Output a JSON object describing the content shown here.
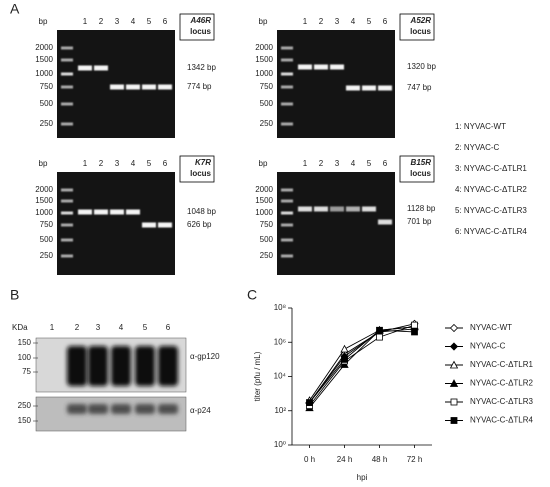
{
  "panel_a": {
    "label": "A",
    "gels": [
      {
        "locus": "A46R",
        "locus_suffix": "locus",
        "unit": "bp",
        "lanes": [
          "1",
          "2",
          "3",
          "4",
          "5",
          "6"
        ],
        "ladder": [
          "2000",
          "1500",
          "1000",
          "750",
          "500",
          "250"
        ],
        "bands": [
          "1342 bp",
          "774 bp"
        ]
      },
      {
        "locus": "A52R",
        "locus_suffix": "locus",
        "unit": "bp",
        "lanes": [
          "1",
          "2",
          "3",
          "4",
          "5",
          "6"
        ],
        "ladder": [
          "2000",
          "1500",
          "1000",
          "750",
          "500",
          "250"
        ],
        "bands": [
          "1320 bp",
          "747 bp"
        ]
      },
      {
        "locus": "K7R",
        "locus_suffix": "locus",
        "unit": "bp",
        "lanes": [
          "1",
          "2",
          "3",
          "4",
          "5",
          "6"
        ],
        "ladder": [
          "2000",
          "1500",
          "1000",
          "750",
          "500",
          "250"
        ],
        "bands": [
          "1048 bp",
          "626 bp"
        ]
      },
      {
        "locus": "B15R",
        "locus_suffix": "locus",
        "unit": "bp",
        "lanes": [
          "1",
          "2",
          "3",
          "4",
          "5",
          "6"
        ],
        "ladder": [
          "2000",
          "1500",
          "1000",
          "750",
          "500",
          "250"
        ],
        "bands": [
          "1128 bp",
          "701 bp"
        ]
      }
    ],
    "legend": [
      "1: NYVAC-WT",
      "2: NYVAC-C",
      "3: NYVAC-C-ΔTLR1",
      "4: NYVAC-C-ΔTLR2",
      "5: NYVAC-C-ΔTLR3",
      "6: NYVAC-C-ΔTLR4"
    ]
  },
  "panel_b": {
    "label": "B",
    "unit": "KDa",
    "lanes": [
      "1",
      "2",
      "3",
      "4",
      "5",
      "6"
    ],
    "blots": [
      {
        "antibody": "α-gp120",
        "markers": [
          "150",
          "100",
          "75"
        ]
      },
      {
        "antibody": "α-p24",
        "markers": [
          "250",
          "150"
        ]
      }
    ]
  },
  "chart_data": {
    "type": "line",
    "panel_label": "C",
    "xlabel": "hpi",
    "ylabel": "titer (pfu / mL)",
    "categories": [
      "0 h",
      "24 h",
      "48 h",
      "72 h"
    ],
    "ylog": true,
    "ylim": [
      1,
      100000000
    ],
    "yticks": [
      {
        "value": 1,
        "label": "10⁰"
      },
      {
        "value": 100,
        "label": "10²"
      },
      {
        "value": 10000,
        "label": "10⁴"
      },
      {
        "value": 1000000,
        "label": "10⁶"
      },
      {
        "value": 100000000,
        "label": "10⁸"
      }
    ],
    "series": [
      {
        "name": "NYVAC-WT",
        "color": "#000000",
        "marker": "diamond",
        "filled": false,
        "values": [
          300,
          200000,
          4000000,
          12000000
        ]
      },
      {
        "name": "NYVAC-C",
        "color": "#000000",
        "marker": "diamond",
        "filled": true,
        "values": [
          300,
          150000,
          4000000,
          6000000
        ]
      },
      {
        "name": "NYVAC-C-ΔTLR1",
        "color": "#000000",
        "marker": "triangle",
        "filled": false,
        "values": [
          400,
          400000,
          5000000,
          8000000
        ]
      },
      {
        "name": "NYVAC-C-ΔTLR2",
        "color": "#000000",
        "marker": "triangle",
        "filled": true,
        "values": [
          150,
          50000,
          5000000,
          8000000
        ]
      },
      {
        "name": "NYVAC-C-ΔTLR3",
        "color": "#000000",
        "marker": "square",
        "filled": false,
        "values": [
          200,
          80000,
          2000000,
          10000000
        ]
      },
      {
        "name": "NYVAC-C-ΔTLR4",
        "color": "#000000",
        "marker": "square",
        "filled": true,
        "values": [
          300,
          100000,
          5000000,
          4000000
        ]
      }
    ]
  }
}
